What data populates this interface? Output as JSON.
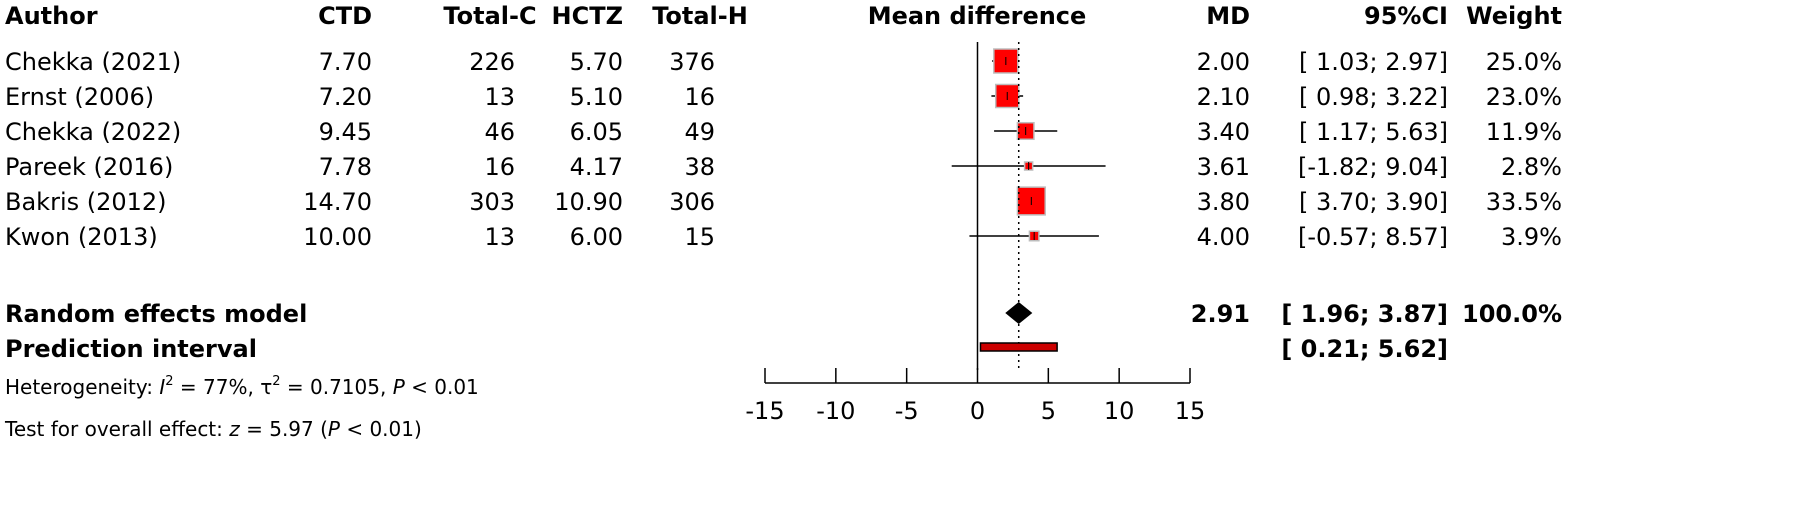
{
  "chart_data": {
    "type": "forest",
    "columns": {
      "author": "Author",
      "ctd": "CTD",
      "total_c": "Total-C",
      "hctz": "HCTZ",
      "total_h": "Total-H",
      "plot": "Mean difference",
      "md": "MD",
      "ci": "95%CI",
      "weight": "Weight"
    },
    "studies": [
      {
        "author": "Chekka (2021)",
        "ctd": "7.70",
        "total_c": "226",
        "hctz": "5.70",
        "total_h": "376",
        "md": 2.0,
        "lower": 1.03,
        "upper": 2.97,
        "md_text": "2.00",
        "ci_text": "[ 1.03; 2.97]",
        "weight_text": "25.0%",
        "weight": 25.0
      },
      {
        "author": "Ernst (2006)",
        "ctd": "7.20",
        "total_c": "13",
        "hctz": "5.10",
        "total_h": "16",
        "md": 2.1,
        "lower": 0.98,
        "upper": 3.22,
        "md_text": "2.10",
        "ci_text": "[ 0.98; 3.22]",
        "weight_text": "23.0%",
        "weight": 23.0
      },
      {
        "author": "Chekka (2022)",
        "ctd": "9.45",
        "total_c": "46",
        "hctz": "6.05",
        "total_h": "49",
        "md": 3.4,
        "lower": 1.17,
        "upper": 5.63,
        "md_text": "3.40",
        "ci_text": "[ 1.17; 5.63]",
        "weight_text": "11.9%",
        "weight": 11.9
      },
      {
        "author": "Pareek (2016)",
        "ctd": "7.78",
        "total_c": "16",
        "hctz": "4.17",
        "total_h": "38",
        "md": 3.61,
        "lower": -1.82,
        "upper": 9.04,
        "md_text": "3.61",
        "ci_text": "[-1.82; 9.04]",
        "weight_text": "2.8%",
        "weight": 2.8
      },
      {
        "author": "Bakris (2012)",
        "ctd": "14.70",
        "total_c": "303",
        "hctz": "10.90",
        "total_h": "306",
        "md": 3.8,
        "lower": 3.7,
        "upper": 3.9,
        "md_text": "3.80",
        "ci_text": "[ 3.70; 3.90]",
        "weight_text": "33.5%",
        "weight": 33.5
      },
      {
        "author": "Kwon (2013)",
        "ctd": "10.00",
        "total_c": "13",
        "hctz": "6.00",
        "total_h": "15",
        "md": 4.0,
        "lower": -0.57,
        "upper": 8.57,
        "md_text": "4.00",
        "ci_text": "[-0.57; 8.57]",
        "weight_text": "3.9%",
        "weight": 3.9
      }
    ],
    "random_effects": {
      "label": "Random effects model",
      "md": 2.91,
      "lower": 1.96,
      "upper": 3.87,
      "md_text": "2.91",
      "ci_text": "[ 1.96; 3.87]",
      "weight_text": "100.0%"
    },
    "prediction": {
      "label": "Prediction interval",
      "lower": 0.21,
      "upper": 5.62,
      "ci_text": "[ 0.21; 5.62]"
    },
    "heterogeneity": {
      "prefix": "Heterogeneity: ",
      "i2_sym": "I",
      "i2_val": " = 77%, ",
      "tau_sym": "τ",
      "tau_val": " = 0.7105, ",
      "p_sym": "P",
      "p_val": " < 0.01"
    },
    "overall": {
      "prefix": "Test for overall effect: ",
      "z_sym": "z",
      "z_val": " = 5.97 (",
      "p_sym": "P",
      "p_val": " < 0.01)"
    },
    "xlim": [
      -15,
      15
    ],
    "xticks": [
      "-15",
      "-10",
      "-5",
      "0",
      "5",
      "10",
      "15"
    ],
    "colors": {
      "square": "#ff0000",
      "square_border": "#bdbdbd",
      "diamond": "#000000",
      "prediction": "#cc0000"
    }
  }
}
